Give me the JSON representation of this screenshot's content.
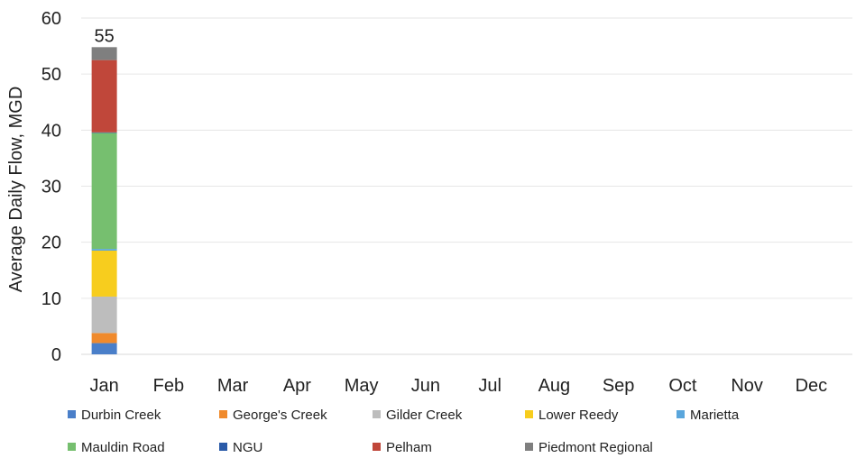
{
  "chart_data": {
    "type": "bar",
    "stacked": true,
    "categories": [
      "Jan",
      "Feb",
      "Mar",
      "Apr",
      "May",
      "Jun",
      "Jul",
      "Aug",
      "Sep",
      "Oct",
      "Nov",
      "Dec"
    ],
    "ylabel": "Average Daily Flow, MGD",
    "ylim": [
      0,
      60
    ],
    "yticks": [
      0,
      10,
      20,
      30,
      40,
      50,
      60
    ],
    "grid": true,
    "legend_position": "bottom",
    "series": [
      {
        "name": "Durbin Creek",
        "color": "#4a7fc9",
        "values": [
          2,
          null,
          null,
          null,
          null,
          null,
          null,
          null,
          null,
          null,
          null,
          null
        ]
      },
      {
        "name": "George's Creek",
        "color": "#f08a2c",
        "values": [
          1.8,
          null,
          null,
          null,
          null,
          null,
          null,
          null,
          null,
          null,
          null,
          null
        ]
      },
      {
        "name": "Gilder Creek",
        "color": "#bdbdbd",
        "values": [
          6.5,
          null,
          null,
          null,
          null,
          null,
          null,
          null,
          null,
          null,
          null,
          null
        ]
      },
      {
        "name": "Lower Reedy",
        "color": "#f7cd1e",
        "values": [
          8.2,
          null,
          null,
          null,
          null,
          null,
          null,
          null,
          null,
          null,
          null,
          null
        ]
      },
      {
        "name": "Marietta",
        "color": "#5aa6dc",
        "values": [
          0.3,
          null,
          null,
          null,
          null,
          null,
          null,
          null,
          null,
          null,
          null,
          null
        ]
      },
      {
        "name": "Mauldin Road",
        "color": "#76bf6f",
        "values": [
          20.7,
          null,
          null,
          null,
          null,
          null,
          null,
          null,
          null,
          null,
          null,
          null
        ]
      },
      {
        "name": "NGU",
        "color": "#2a5aa8",
        "values": [
          0.1,
          null,
          null,
          null,
          null,
          null,
          null,
          null,
          null,
          null,
          null,
          null
        ]
      },
      {
        "name": "Pelham",
        "color": "#c0473a",
        "values": [
          12.9,
          null,
          null,
          null,
          null,
          null,
          null,
          null,
          null,
          null,
          null,
          null
        ]
      },
      {
        "name": "Piedmont Regional",
        "color": "#7f7f7f",
        "values": [
          2.3,
          null,
          null,
          null,
          null,
          null,
          null,
          null,
          null,
          null,
          null,
          null
        ]
      }
    ],
    "totals": [
      "55",
      "",
      "",
      "",
      "",
      "",
      "",
      "",
      "",
      "",
      "",
      ""
    ]
  }
}
